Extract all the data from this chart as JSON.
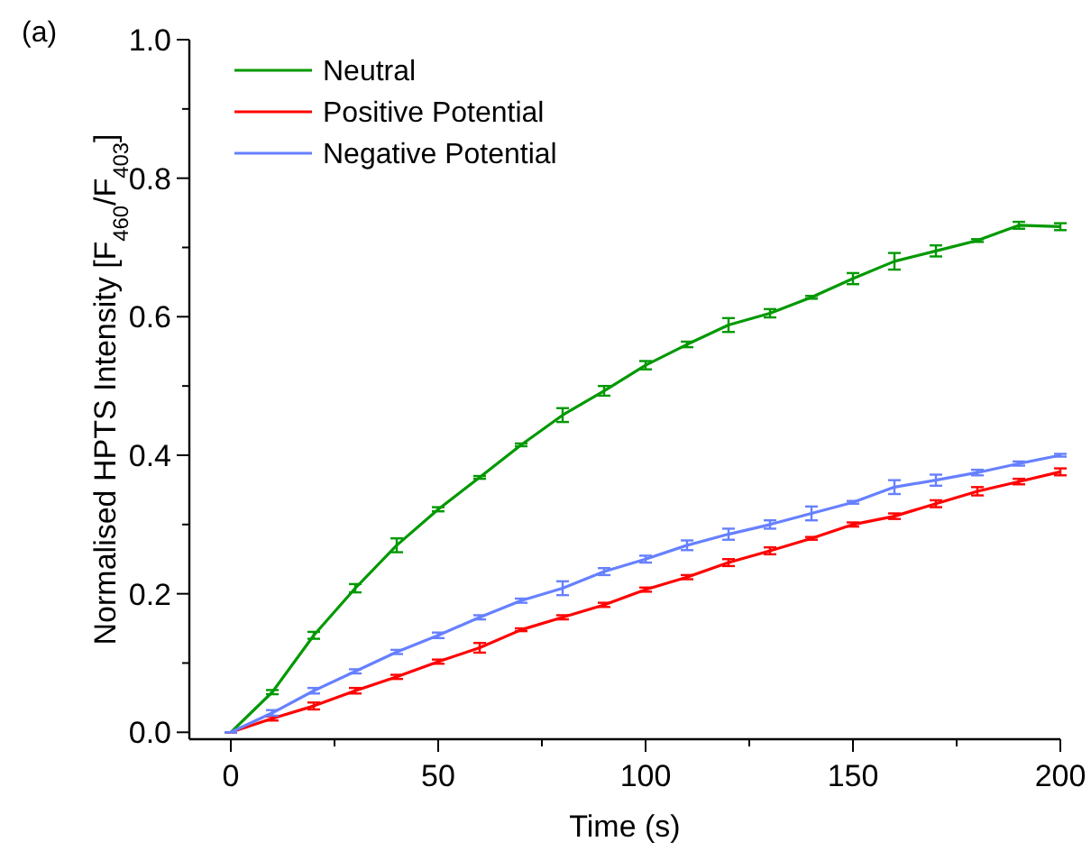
{
  "chart_data": {
    "type": "line",
    "xlabel": "Time (s)",
    "ylabel": "Normalised HPTS Intensity [F$_{460}$/F$_{403}$]",
    "annotations": [
      "(a)"
    ],
    "x": [
      0,
      10,
      20,
      30,
      40,
      50,
      60,
      70,
      80,
      90,
      100,
      110,
      120,
      130,
      140,
      150,
      160,
      170,
      180,
      190,
      200
    ],
    "xlim": [
      -10,
      200
    ],
    "ylim": [
      -0.01,
      1.0
    ],
    "xticks": [
      0,
      {
        "value": 25,
        "label": null
      },
      50,
      {
        "value": 75,
        "label": null
      },
      100,
      {
        "value": 125,
        "label": null
      },
      150,
      {
        "value": 175,
        "label": null
      },
      200
    ],
    "yticks": [
      {
        "value": 0,
        "label": "0.0"
      },
      {
        "value": 0.1,
        "label": null
      },
      0.2,
      {
        "value": 0.3,
        "label": null
      },
      0.4,
      {
        "value": 0.5,
        "label": null
      },
      0.6,
      {
        "value": 0.7,
        "label": null
      },
      0.8,
      {
        "value": 0.9,
        "label": null
      },
      {
        "value": 1,
        "label": "1.0"
      }
    ],
    "legend": "top left",
    "marker": "none",
    "line_style": "solid",
    "grid": false,
    "series": [
      {
        "name": "Neutral",
        "color": "#009900",
        "values": [
          0,
          0.058,
          0.14,
          0.208,
          0.27,
          0.322,
          0.368,
          0.415,
          0.458,
          0.493,
          0.53,
          0.56,
          0.588,
          0.605,
          0.628,
          0.655,
          0.68,
          0.695,
          0.71,
          0.732,
          0.73
        ],
        "errors": [
          0,
          0.003,
          0.005,
          0.006,
          0.01,
          0.003,
          0.002,
          0.002,
          0.01,
          0.007,
          0.006,
          0.004,
          0.01,
          0.006,
          0.002,
          0.008,
          0.012,
          0.008,
          0.002,
          0.005,
          0.005
        ]
      },
      {
        "name": "Positive Potential",
        "color": "#ff0000",
        "values": [
          0,
          0.02,
          0.038,
          0.06,
          0.08,
          0.102,
          0.122,
          0.148,
          0.166,
          0.184,
          0.206,
          0.224,
          0.245,
          0.262,
          0.28,
          0.3,
          0.312,
          0.33,
          0.348,
          0.362,
          0.376
        ],
        "errors": [
          0,
          0.003,
          0.005,
          0.004,
          0.003,
          0.003,
          0.007,
          0.002,
          0.003,
          0.003,
          0.003,
          0.003,
          0.005,
          0.005,
          0.002,
          0.003,
          0.004,
          0.005,
          0.006,
          0.004,
          0.005
        ]
      },
      {
        "name": "Negative Potential",
        "color": "#6680ff",
        "values": [
          0,
          0.028,
          0.06,
          0.088,
          0.116,
          0.14,
          0.166,
          0.19,
          0.208,
          0.232,
          0.25,
          0.27,
          0.286,
          0.3,
          0.316,
          0.332,
          0.354,
          0.364,
          0.375,
          0.388,
          0.4
        ],
        "errors": [
          0,
          0.004,
          0.004,
          0.003,
          0.003,
          0.004,
          0.003,
          0.003,
          0.01,
          0.005,
          0.005,
          0.007,
          0.008,
          0.006,
          0.01,
          0.002,
          0.01,
          0.008,
          0.004,
          0.003,
          0.002
        ]
      }
    ]
  }
}
